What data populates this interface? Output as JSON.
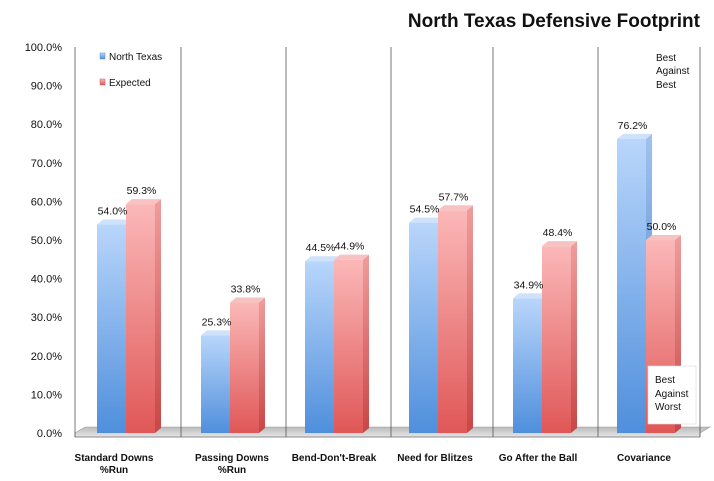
{
  "chart_data": {
    "type": "bar",
    "title": "North Texas Defensive Footprint",
    "categories": [
      [
        "Standard Downs",
        "%Run"
      ],
      [
        "Passing Downs",
        "%Run"
      ],
      [
        "Bend-Don't-Break"
      ],
      [
        "Need for Blitzes"
      ],
      [
        "Go After the Ball"
      ],
      [
        "Covariance"
      ]
    ],
    "series": [
      {
        "name": "North Texas",
        "color": "#7eaee8",
        "values": [
          54.0,
          25.3,
          44.5,
          54.5,
          34.9,
          76.2
        ],
        "labels": [
          "54.0%",
          "25.3%",
          "44.5%",
          "54.5%",
          "34.9%",
          "76.2%"
        ]
      },
      {
        "name": "Expected",
        "color": "#ee8080",
        "values": [
          59.3,
          33.8,
          44.9,
          57.7,
          48.4,
          50.0
        ],
        "labels": [
          "59.3%",
          "33.8%",
          "44.9%",
          "57.7%",
          "48.4%",
          "50.0%"
        ]
      }
    ],
    "ylim": [
      0,
      100
    ],
    "yticks": [
      "0.0%",
      "10.0%",
      "20.0%",
      "30.0%",
      "40.0%",
      "50.0%",
      "60.0%",
      "70.0%",
      "80.0%",
      "90.0%",
      "100.0%"
    ],
    "xlabel": "",
    "ylabel": "",
    "grid": false,
    "legend_position": "top-left",
    "annotations": {
      "best": [
        "Best",
        "Against",
        "Best"
      ],
      "worst": [
        "Best",
        "Against",
        "Worst"
      ]
    }
  }
}
